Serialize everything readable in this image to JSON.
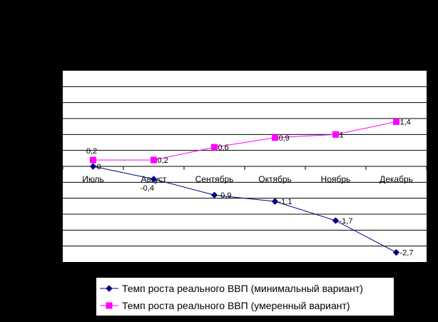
{
  "chart_data": {
    "type": "line",
    "categories": [
      "Июль",
      "Август",
      "Сентябрь",
      "Октябрь",
      "Ноябрь",
      "Декабрь"
    ],
    "ylim": [
      -3,
      3
    ],
    "y_gridline_step": 0.5,
    "grid": true,
    "legend_placement": "bottom-right",
    "plot_background": "#FFFFFF",
    "page_background": "#000000",
    "series": [
      {
        "name": "Темп роста реального ВВП (минимальный вариант)",
        "values": [
          0,
          -0.4,
          -0.9,
          -1.1,
          -1.7,
          -2.7
        ],
        "labels": [
          "0",
          "-0,4",
          "-0,9",
          "-1,1",
          "-1,7",
          "-2,7"
        ],
        "color": "#000080",
        "marker": "diamond"
      },
      {
        "name": "Темп роста реального ВВП (умеренный вариант)",
        "values": [
          0.2,
          0.2,
          0.6,
          0.9,
          1.0,
          1.4
        ],
        "labels": [
          "0,2",
          "0,2",
          "0,6",
          "0,9",
          "1",
          "1,4"
        ],
        "color": "#FF00FF",
        "marker": "square"
      }
    ]
  }
}
